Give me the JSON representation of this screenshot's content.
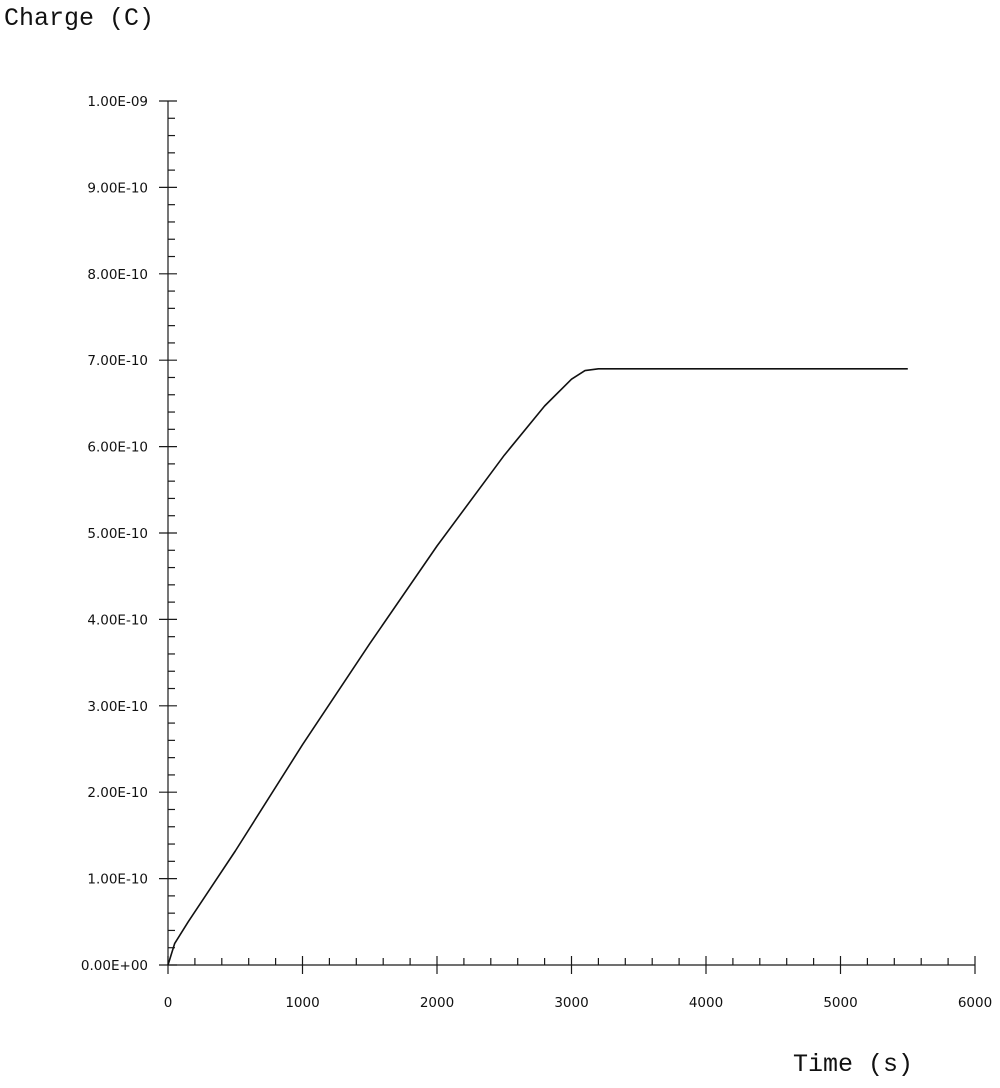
{
  "chart_data": {
    "type": "line",
    "title": "",
    "ylabel": "Charge (C)",
    "xlabel": "Time (s)",
    "xlim": [
      0,
      6000
    ],
    "ylim": [
      0,
      1e-09
    ],
    "grid": false,
    "x_ticks": [
      0,
      1000,
      2000,
      3000,
      4000,
      5000,
      6000
    ],
    "x_tick_labels": [
      "0",
      "1000",
      "2000",
      "3000",
      "4000",
      "5000",
      "6000"
    ],
    "y_ticks": [
      0,
      1e-10,
      2e-10,
      3e-10,
      4e-10,
      5e-10,
      6e-10,
      7e-10,
      8e-10,
      9e-10,
      1e-09
    ],
    "y_tick_labels": [
      "0.00E+00",
      "1.00E-10",
      "2.00E-10",
      "3.00E-10",
      "4.00E-10",
      "5.00E-10",
      "6.00E-10",
      "7.00E-10",
      "8.00E-10",
      "9.00E-10",
      "1.00E-09"
    ],
    "series": [
      {
        "x": [
          0,
          50,
          150,
          500,
          1000,
          1500,
          2000,
          2500,
          2800,
          3000,
          3100,
          3200,
          3500,
          4000,
          4500,
          5000,
          5500
        ],
        "y": [
          0,
          2.5e-11,
          5e-11,
          1.32e-10,
          2.55e-10,
          3.72e-10,
          4.85e-10,
          5.9e-10,
          6.47e-10,
          6.78e-10,
          6.88e-10,
          6.9e-10,
          6.9e-10,
          6.9e-10,
          6.9e-10,
          6.9e-10,
          6.9e-10
        ]
      }
    ]
  }
}
